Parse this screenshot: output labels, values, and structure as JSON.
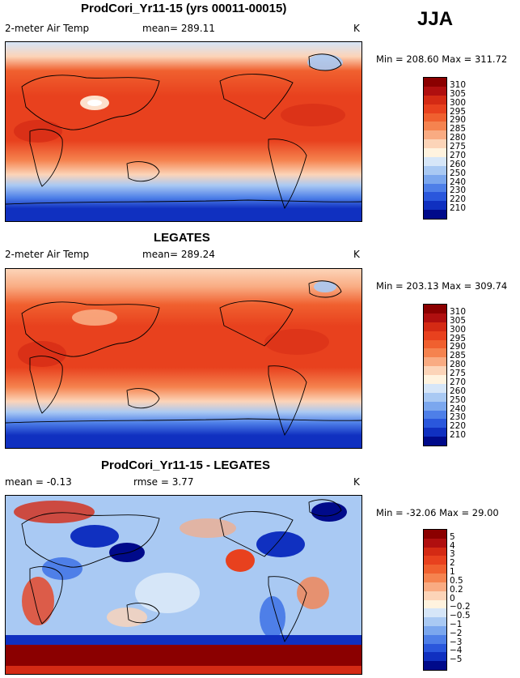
{
  "season": "JJA",
  "panels": [
    {
      "title": "ProdCori_Yr11-15 (yrs 00011-00015)",
      "left_label": "2-meter Air Temp",
      "mid_label": "mean= 289.11",
      "units": "K",
      "minmax": "Min = 208.60 Max = 311.72",
      "type": "temperature"
    },
    {
      "title": "LEGATES",
      "left_label": "2-meter Air Temp",
      "mid_label": "mean= 289.24",
      "units": "K",
      "minmax": "Min = 203.13 Max = 309.74",
      "type": "temperature"
    },
    {
      "title": "ProdCori_Yr11-15 - LEGATES",
      "left_label": "mean =  -0.13",
      "mid_label": "rmse =   3.77",
      "units": "K",
      "minmax": "Min = -32.06 Max =  29.00",
      "type": "difference"
    }
  ],
  "colorbars": {
    "temperature": {
      "labels": [
        "310",
        "305",
        "300",
        "295",
        "290",
        "285",
        "280",
        "275",
        "270",
        "260",
        "250",
        "240",
        "230",
        "220",
        "210"
      ],
      "colors": [
        "#8b0000",
        "#b00f0f",
        "#d42a14",
        "#e8411e",
        "#f0602f",
        "#f5834f",
        "#f9ab82",
        "#fcd4b8",
        "#fff3df",
        "#d6e6f8",
        "#a9c9f3",
        "#7ba7ee",
        "#4e7fe8",
        "#2a57dc",
        "#1030c0",
        "#000a8a"
      ]
    },
    "difference": {
      "labels": [
        "5",
        "4",
        "3",
        "2",
        "1",
        "0.5",
        "0.2",
        "0",
        "−0.2",
        "−0.5",
        "−1",
        "−2",
        "−3",
        "−4",
        "−5"
      ],
      "colors": [
        "#8b0000",
        "#b00f0f",
        "#d42a14",
        "#e8411e",
        "#f0602f",
        "#f5834f",
        "#f9ab82",
        "#fcd4b8",
        "#fff3df",
        "#d6e6f8",
        "#a9c9f3",
        "#7ba7ee",
        "#4e7fe8",
        "#2a57dc",
        "#1030c0",
        "#000a8a"
      ]
    }
  }
}
